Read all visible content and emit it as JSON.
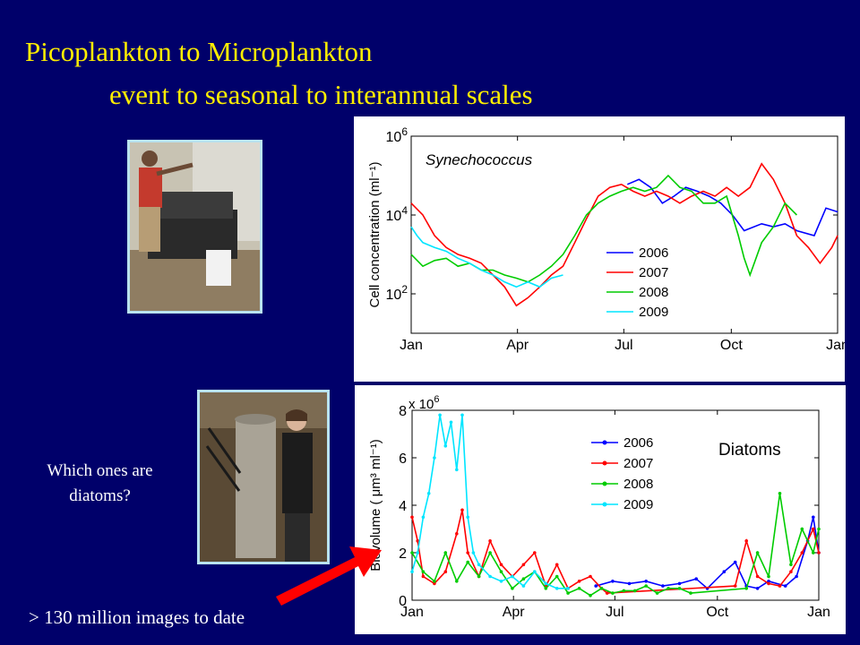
{
  "slide": {
    "title_line1": "Picoplankton to Microplankton",
    "title_line2": "event to seasonal to interannual scales",
    "question_line1": "Which ones are",
    "question_line2": "diatoms?",
    "bottom_note": "> 130 million images to date"
  },
  "colors": {
    "background": "#00006a",
    "title": "#ffee00",
    "arrow": "#ff0000"
  },
  "chart_data": [
    {
      "type": "line",
      "annotation": "Synechococcus",
      "ylabel": "Cell concentration (ml⁻¹)",
      "yscale": "log",
      "ylim": [
        10,
        1000000
      ],
      "yticks": [
        "10^2",
        "10^4",
        "10^6"
      ],
      "xlim": [
        0,
        365
      ],
      "xticks": [
        {
          "day": 0,
          "label": "Jan"
        },
        {
          "day": 91,
          "label": "Apr"
        },
        {
          "day": 182,
          "label": "Jul"
        },
        {
          "day": 274,
          "label": "Oct"
        },
        {
          "day": 365,
          "label": "Jan"
        }
      ],
      "legend_position": "center-right",
      "series": [
        {
          "name": "2006",
          "color": "#0000ff",
          "x": [
            185,
            195,
            205,
            215,
            225,
            235,
            245,
            255,
            265,
            275,
            285,
            300,
            310,
            320,
            330,
            345,
            355,
            365
          ],
          "y": [
            60000,
            80000,
            50000,
            20000,
            30000,
            50000,
            40000,
            30000,
            20000,
            10000,
            4000,
            6000,
            5000,
            6000,
            4000,
            3000,
            15000,
            12000
          ]
        },
        {
          "name": "2007",
          "color": "#ff0000",
          "x": [
            0,
            10,
            20,
            30,
            40,
            50,
            60,
            70,
            80,
            90,
            100,
            110,
            120,
            130,
            140,
            150,
            160,
            170,
            180,
            190,
            200,
            210,
            220,
            230,
            240,
            250,
            260,
            270,
            280,
            290,
            300,
            310,
            320,
            330,
            340,
            350,
            360,
            365
          ],
          "y": [
            20000,
            10000,
            3000,
            1500,
            1000,
            800,
            600,
            300,
            150,
            50,
            80,
            150,
            300,
            500,
            2000,
            8000,
            30000,
            50000,
            60000,
            40000,
            30000,
            40000,
            30000,
            20000,
            30000,
            40000,
            30000,
            50000,
            30000,
            50000,
            200000,
            80000,
            20000,
            3000,
            1500,
            600,
            1500,
            3000
          ]
        },
        {
          "name": "2008",
          "color": "#00cc00",
          "x": [
            0,
            10,
            20,
            30,
            40,
            50,
            60,
            70,
            80,
            90,
            100,
            110,
            120,
            130,
            140,
            150,
            160,
            170,
            180,
            190,
            200,
            210,
            220,
            230,
            240,
            250,
            260,
            270,
            280,
            285,
            290,
            300,
            310,
            320,
            330
          ],
          "y": [
            1000,
            500,
            700,
            800,
            500,
            600,
            400,
            400,
            300,
            250,
            200,
            300,
            500,
            1000,
            3000,
            10000,
            20000,
            30000,
            40000,
            50000,
            40000,
            50000,
            100000,
            50000,
            40000,
            20000,
            20000,
            30000,
            3000,
            800,
            300,
            2000,
            5000,
            20000,
            10000
          ]
        },
        {
          "name": "2009",
          "color": "#00e5ff",
          "x": [
            0,
            5,
            10,
            20,
            30,
            40,
            50,
            60,
            70,
            80,
            90,
            100,
            110,
            120,
            130
          ],
          "y": [
            5000,
            3000,
            2000,
            1500,
            1200,
            800,
            600,
            400,
            300,
            200,
            150,
            200,
            150,
            250,
            300
          ]
        }
      ]
    },
    {
      "type": "line",
      "annotation": "Diatoms",
      "ylabel": "Biovolume ( μm³ ml⁻¹)",
      "multiplier": "x 10^6",
      "ylim": [
        0,
        8
      ],
      "yticks": [
        0,
        2,
        4,
        6,
        8
      ],
      "xlim": [
        0,
        365
      ],
      "xticks": [
        {
          "day": 0,
          "label": "Jan"
        },
        {
          "day": 91,
          "label": "Apr"
        },
        {
          "day": 182,
          "label": "Jul"
        },
        {
          "day": 274,
          "label": "Oct"
        },
        {
          "day": 365,
          "label": "Jan"
        }
      ],
      "legend_position": "top-center",
      "series": [
        {
          "name": "2006",
          "color": "#0000ff",
          "x": [
            165,
            180,
            195,
            210,
            225,
            240,
            255,
            265,
            280,
            290,
            300,
            310,
            320,
            335,
            345,
            355,
            360,
            365
          ],
          "y": [
            0.6,
            0.8,
            0.7,
            0.8,
            0.6,
            0.7,
            0.9,
            0.5,
            1.2,
            1.6,
            0.6,
            0.5,
            0.8,
            0.6,
            1.0,
            2.5,
            3.5,
            2.0
          ]
        },
        {
          "name": "2007",
          "color": "#ff0000",
          "x": [
            0,
            5,
            10,
            20,
            30,
            40,
            45,
            50,
            60,
            70,
            80,
            90,
            100,
            110,
            120,
            130,
            140,
            150,
            160,
            170,
            175,
            290,
            300,
            310,
            320,
            330,
            340,
            350,
            360,
            365
          ],
          "y": [
            3.5,
            2.5,
            1.0,
            0.7,
            1.2,
            2.8,
            3.8,
            2.0,
            1.0,
            2.5,
            1.5,
            1.0,
            1.5,
            2.0,
            0.6,
            1.5,
            0.5,
            0.8,
            1.0,
            0.5,
            0.3,
            0.6,
            2.5,
            1.0,
            0.7,
            0.6,
            1.2,
            2.0,
            3.0,
            2.0
          ]
        },
        {
          "name": "2008",
          "color": "#00cc00",
          "x": [
            0,
            10,
            20,
            30,
            40,
            50,
            60,
            70,
            80,
            90,
            100,
            110,
            120,
            130,
            140,
            150,
            160,
            170,
            180,
            190,
            200,
            210,
            220,
            230,
            240,
            250,
            300,
            310,
            320,
            330,
            340,
            350,
            360,
            365
          ],
          "y": [
            2.0,
            1.2,
            0.8,
            2.0,
            0.8,
            1.6,
            1.0,
            2.0,
            1.2,
            0.5,
            0.9,
            1.2,
            0.5,
            1.0,
            0.3,
            0.5,
            0.2,
            0.5,
            0.3,
            0.4,
            0.4,
            0.6,
            0.3,
            0.5,
            0.5,
            0.3,
            0.5,
            2.0,
            1.0,
            4.5,
            1.5,
            3.0,
            2.0,
            3.0
          ]
        },
        {
          "name": "2009",
          "color": "#00e5ff",
          "x": [
            0,
            5,
            10,
            15,
            20,
            25,
            30,
            35,
            40,
            45,
            50,
            55,
            60,
            70,
            80,
            90,
            100,
            110,
            120,
            130,
            140
          ],
          "y": [
            1.2,
            2.0,
            3.5,
            4.5,
            6.0,
            7.8,
            6.5,
            7.5,
            5.5,
            7.8,
            3.5,
            2.0,
            1.5,
            1.0,
            0.8,
            1.0,
            0.6,
            1.2,
            0.7,
            0.5,
            0.5
          ]
        }
      ]
    }
  ]
}
